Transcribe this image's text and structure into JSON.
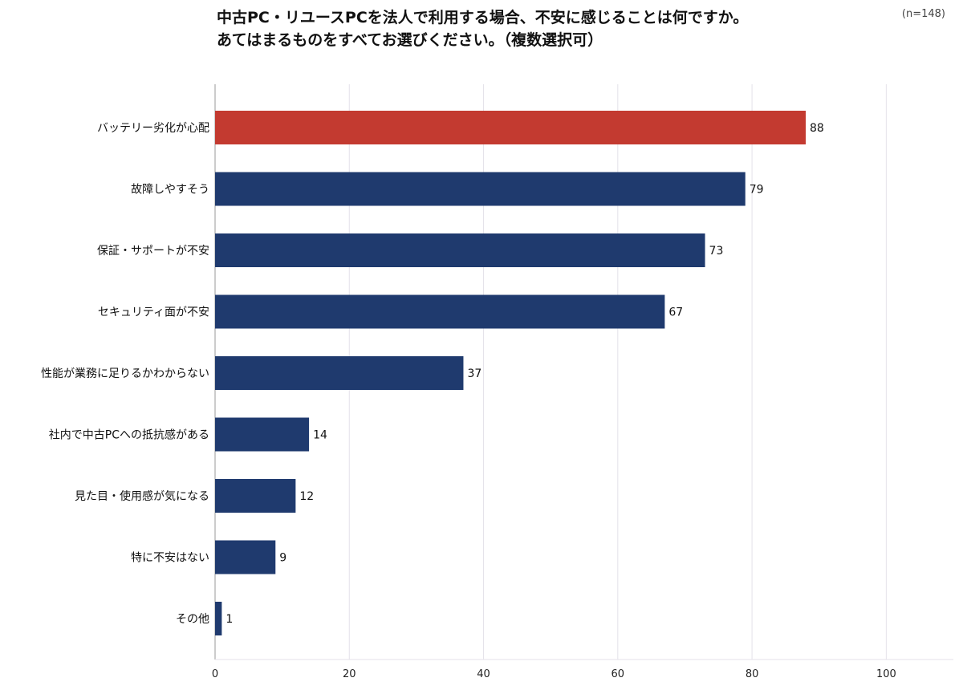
{
  "title": {
    "line1": "中古PC・リユースPCを法人で利用する場合、不安に感じることは何ですか。",
    "line2": "あてはまるものをすべてお選びください。（複数選択可）"
  },
  "sample_size": "(n=148)",
  "colors": {
    "highlight": "#C33A30",
    "bar": "#1F3A6E",
    "grid": "#E4E2EA",
    "axis": "#999999"
  },
  "chart_data": {
    "type": "bar",
    "orientation": "horizontal",
    "categories": [
      "バッテリー劣化が心配",
      "故障しやすそう",
      "保証・サポートが不安",
      "セキュリティ面が不安",
      "性能が業務に足りるかわからない",
      "社内で中古PCへの抵抗感がある",
      "見た目・使用感が気になる",
      "特に不安はない",
      "その他"
    ],
    "values": [
      88,
      79,
      73,
      67,
      37,
      14,
      12,
      9,
      1
    ],
    "highlight_index": 0,
    "xlim": [
      0,
      110
    ],
    "xticks": [
      0,
      20,
      40,
      60,
      80,
      100
    ],
    "grid": true,
    "data_labels": true
  }
}
